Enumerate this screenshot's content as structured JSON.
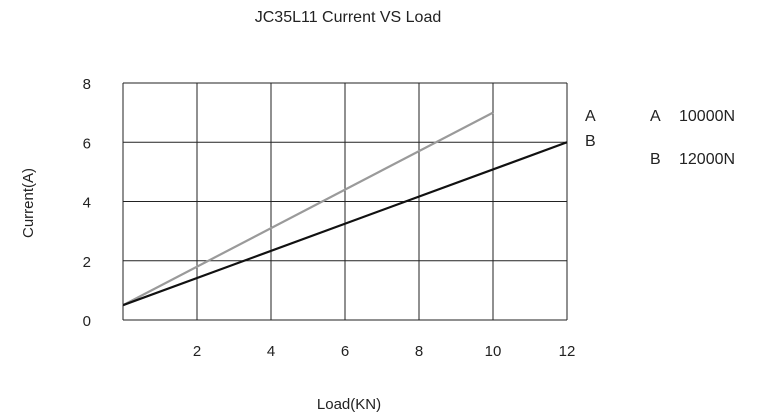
{
  "chart_data": {
    "type": "line",
    "title": "JC35L11 Current VS Load",
    "xlabel": "Load(KN)",
    "ylabel": "Current(A)",
    "xlim": [
      0,
      12
    ],
    "ylim": [
      0,
      8
    ],
    "x_ticks": [
      "2",
      "4",
      "6",
      "8",
      "10",
      "12"
    ],
    "y_ticks": [
      "0",
      "2",
      "4",
      "6",
      "8"
    ],
    "grid": true,
    "series": [
      {
        "name": "A",
        "color": "#9a9a9a",
        "x": [
          0,
          10
        ],
        "y": [
          0.5,
          7
        ]
      },
      {
        "name": "B",
        "color": "#111111",
        "x": [
          0,
          12
        ],
        "y": [
          0.5,
          6
        ]
      }
    ],
    "legend": {
      "placement": "right",
      "entries": [
        {
          "key": "A",
          "text": "10000N"
        },
        {
          "key": "B",
          "text": "12000N"
        }
      ]
    }
  }
}
